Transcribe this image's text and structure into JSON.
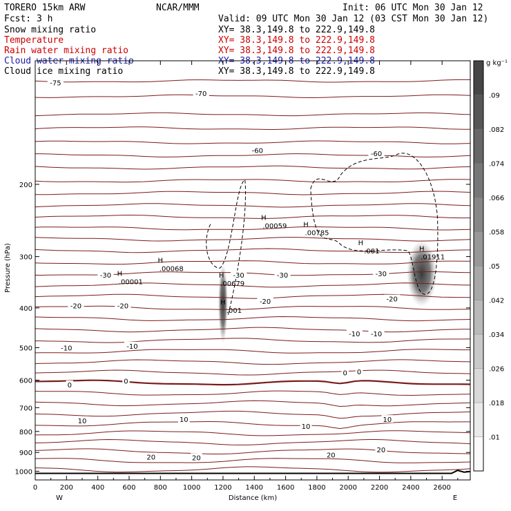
{
  "header": {
    "model": "TORERO  15km ARW",
    "center": "NCAR/MMM",
    "init": "Init: 06 UTC Mon 30 Jan 12",
    "fcst": "Fcst:    3 h",
    "valid": "Valid: 09 UTC Mon 30 Jan 12 (03 CST Mon 30 Jan 12)",
    "fields": [
      {
        "label": "Snow mixing ratio",
        "color": "#000000",
        "xy": "XY=  38.3,149.8 to 222.9,149.8",
        "xy_color": "#000000"
      },
      {
        "label": "Temperature",
        "color": "#cc0000",
        "xy": "XY=  38.3,149.8 to 222.9,149.8",
        "xy_color": "#cc0000"
      },
      {
        "label": "Rain water mixing ratio",
        "color": "#cc0000",
        "xy": "XY=  38.3,149.8 to 222.9,149.8",
        "xy_color": "#cc0000"
      },
      {
        "label": "Cloud water mixing ratio",
        "color": "#1a1aa6",
        "xy": "XY=  38.3,149.8 to 222.9,149.8",
        "xy_color": "#1a1aa6"
      },
      {
        "label": "Cloud ice mixing ratio",
        "color": "#000000",
        "xy": "XY=  38.3,149.8 to 222.9,149.8",
        "xy_color": "#000000"
      }
    ]
  },
  "chart_data": {
    "type": "heatmap",
    "xlabel": "Distance (km)",
    "ylabel": "Pressure (hPa)",
    "xlim": [
      0,
      2780
    ],
    "ylim": [
      1050,
      100
    ],
    "x_ticks": [
      0,
      200,
      400,
      600,
      800,
      1000,
      1200,
      1400,
      1600,
      1800,
      2000,
      2200,
      2400,
      2600
    ],
    "y_ticks": [
      200,
      300,
      400,
      500,
      600,
      700,
      800,
      900,
      1000
    ],
    "y_scale": "log",
    "west_label": "W",
    "east_label": "E",
    "colorbar": {
      "unit": "g kg⁻¹",
      "ticks": [
        ".01",
        ".018",
        ".026",
        ".034",
        ".042",
        ".05",
        ".058",
        ".066",
        ".074",
        ".082",
        ".09"
      ]
    },
    "temperature_contours": {
      "color": "#7a1a1a",
      "labels": [
        {
          "text": "-75",
          "x": 130,
          "p": 113
        },
        {
          "text": "-70",
          "x": 1060,
          "p": 120
        },
        {
          "text": "-60",
          "x": 1420,
          "p": 165
        },
        {
          "text": "-60",
          "x": 2180,
          "p": 168
        },
        {
          "text": "-30",
          "x": 450,
          "p": 332
        },
        {
          "text": "-30",
          "x": 1300,
          "p": 332
        },
        {
          "text": "-30",
          "x": 1580,
          "p": 332
        },
        {
          "text": "-30",
          "x": 2210,
          "p": 330
        },
        {
          "text": "-20",
          "x": 260,
          "p": 395
        },
        {
          "text": "-20",
          "x": 560,
          "p": 395
        },
        {
          "text": "-20",
          "x": 1470,
          "p": 385
        },
        {
          "text": "-20",
          "x": 2280,
          "p": 380
        },
        {
          "text": "-10",
          "x": 2040,
          "p": 462
        },
        {
          "text": "-10",
          "x": 2180,
          "p": 462
        },
        {
          "text": "-10",
          "x": 200,
          "p": 500
        },
        {
          "text": "-10",
          "x": 620,
          "p": 495
        },
        {
          "text": "0",
          "x": 220,
          "p": 615
        },
        {
          "text": "0",
          "x": 580,
          "p": 602
        },
        {
          "text": "0",
          "x": 1980,
          "p": 575
        },
        {
          "text": "0",
          "x": 2070,
          "p": 572
        },
        {
          "text": "10",
          "x": 300,
          "p": 752
        },
        {
          "text": "10",
          "x": 950,
          "p": 747
        },
        {
          "text": "10",
          "x": 1730,
          "p": 776
        },
        {
          "text": "10",
          "x": 2250,
          "p": 747
        },
        {
          "text": "20",
          "x": 740,
          "p": 922
        },
        {
          "text": "20",
          "x": 1030,
          "p": 925
        },
        {
          "text": "20",
          "x": 1890,
          "p": 912
        },
        {
          "text": "20",
          "x": 2210,
          "p": 885
        }
      ]
    },
    "maxima": [
      {
        "text": ".00001",
        "x": 540,
        "p": 345
      },
      {
        "text": ".00068",
        "x": 800,
        "p": 320
      },
      {
        "text": ".00679",
        "x": 1190,
        "p": 348
      },
      {
        "text": ".001",
        "x": 1200,
        "p": 405
      },
      {
        "text": ".00059",
        "x": 1460,
        "p": 252
      },
      {
        "text": ".00785",
        "x": 1730,
        "p": 262
      },
      {
        "text": ".001",
        "x": 2080,
        "p": 290
      },
      {
        "text": ".01911",
        "x": 2470,
        "p": 300
      }
    ]
  }
}
